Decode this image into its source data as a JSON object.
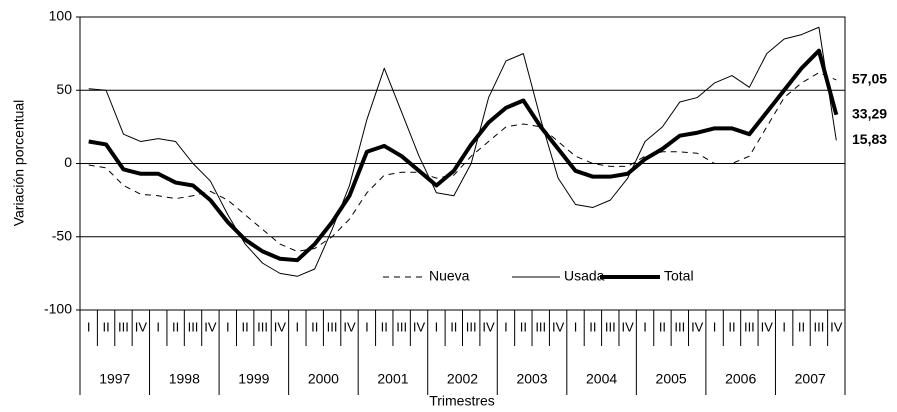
{
  "chart_data": {
    "type": "line",
    "y_axis_label": "Variación porcentual",
    "x_axis_label": "Trimestres",
    "categories": [
      "I",
      "II",
      "III",
      "IV",
      "I",
      "II",
      "III",
      "IV",
      "I",
      "II",
      "III",
      "IV",
      "I",
      "II",
      "III",
      "IV",
      "I",
      "II",
      "III",
      "IV",
      "I",
      "II",
      "III",
      "IV",
      "I",
      "II",
      "III",
      "IV",
      "I",
      "II",
      "III",
      "IV",
      "I",
      "II",
      "III",
      "IV",
      "I",
      "II",
      "III",
      "IV",
      "I",
      "II",
      "III",
      "IV"
    ],
    "years": [
      "1997",
      "1998",
      "1999",
      "2000",
      "2001",
      "2002",
      "2003",
      "2004",
      "2005",
      "2006",
      "2007"
    ],
    "series": [
      {
        "name": "Nueva",
        "color": "#000000",
        "dash": true,
        "line_width": 1,
        "values": [
          -1,
          -3,
          -15,
          -21,
          -22,
          -24,
          -22,
          -19,
          -25,
          -35,
          -45,
          -55,
          -60,
          -58,
          -50,
          -38,
          -20,
          -8,
          -6,
          -6,
          -10,
          -8,
          5,
          15,
          25,
          27,
          25,
          15,
          5,
          0,
          -2,
          -2,
          5,
          8,
          8,
          7,
          0,
          0,
          5,
          25,
          45,
          55,
          62,
          57.05
        ],
        "value_labels": [
          null,
          null,
          null,
          null,
          null,
          null,
          null,
          null,
          null,
          null,
          null,
          null,
          null,
          null,
          null,
          null,
          null,
          null,
          null,
          null,
          null,
          null,
          null,
          null,
          null,
          null,
          null,
          null,
          null,
          null,
          null,
          null,
          null,
          null,
          null,
          null,
          null,
          null,
          null,
          null,
          null,
          null,
          null,
          "57,05"
        ]
      },
      {
        "name": "Usada",
        "color": "#000000",
        "dash": false,
        "line_width": 1,
        "values": [
          51,
          50,
          20,
          15,
          17,
          15,
          0,
          -12,
          -35,
          -55,
          -68,
          -75,
          -77,
          -72,
          -45,
          -15,
          30,
          65,
          35,
          5,
          -20,
          -22,
          0,
          45,
          70,
          75,
          30,
          -10,
          -28,
          -30,
          -25,
          -10,
          15,
          25,
          42,
          45,
          55,
          60,
          52,
          75,
          85,
          88,
          93,
          15.83
        ],
        "value_labels": [
          null,
          null,
          null,
          null,
          null,
          null,
          null,
          null,
          null,
          null,
          null,
          null,
          null,
          null,
          null,
          null,
          null,
          null,
          null,
          null,
          null,
          null,
          null,
          null,
          null,
          null,
          null,
          null,
          null,
          null,
          null,
          null,
          null,
          null,
          null,
          null,
          null,
          null,
          null,
          null,
          null,
          null,
          null,
          "15,83"
        ]
      },
      {
        "name": "Total",
        "color": "#000000",
        "dash": false,
        "line_width": 4,
        "values": [
          15,
          13,
          -4,
          -7,
          -7,
          -13,
          -15,
          -25,
          -40,
          -52,
          -60,
          -65,
          -66,
          -55,
          -40,
          -22,
          8,
          12,
          5,
          -5,
          -15,
          -5,
          13,
          28,
          38,
          43,
          25,
          10,
          -5,
          -9,
          -9,
          -7,
          3,
          10,
          19,
          21,
          24,
          24,
          20,
          35,
          50,
          65,
          77,
          33.29
        ],
        "value_labels": [
          null,
          null,
          null,
          null,
          null,
          null,
          null,
          null,
          null,
          null,
          null,
          null,
          null,
          null,
          null,
          null,
          null,
          null,
          null,
          null,
          null,
          null,
          null,
          null,
          null,
          null,
          null,
          null,
          null,
          null,
          null,
          null,
          null,
          null,
          null,
          null,
          null,
          null,
          null,
          null,
          null,
          null,
          null,
          "33,29"
        ]
      }
    ],
    "ylim": [
      -100,
      100
    ],
    "yticks": [
      -100,
      -50,
      0,
      50,
      100
    ],
    "grid": true,
    "legend": "lower center"
  }
}
